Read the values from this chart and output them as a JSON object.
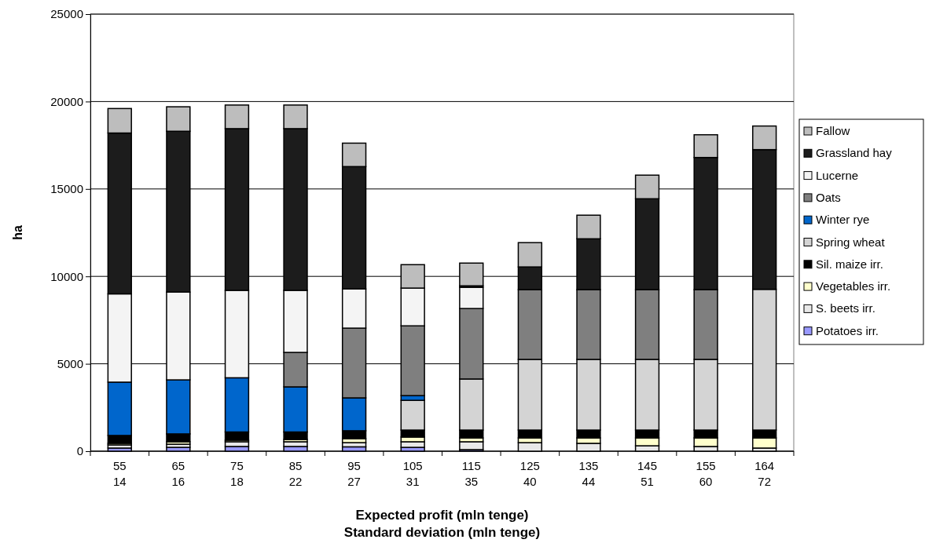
{
  "chart_data": {
    "type": "bar",
    "stacked": true,
    "categories": [
      "55\n14",
      "65\n16",
      "75\n18",
      "85\n22",
      "95\n27",
      "105\n31",
      "115\n35",
      "125\n40",
      "135\n44",
      "145\n51",
      "155\n60",
      "164\n72"
    ],
    "xlabel": "Expected profit (mln tenge)\nStandard deviation (mln tenge)",
    "ylabel": "ha",
    "ylim": [
      0,
      25000
    ],
    "yticks": [
      0,
      5000,
      10000,
      15000,
      20000,
      25000
    ],
    "grid": "y",
    "legend": "right",
    "series": [
      {
        "name": "Potatoes irr.",
        "color": "#9999ff",
        "values": [
          180,
          220,
          270,
          270,
          250,
          220,
          90,
          0,
          0,
          0,
          0,
          0
        ]
      },
      {
        "name": "S. beets irr.",
        "color": "#e8e8e8",
        "values": [
          180,
          180,
          270,
          270,
          240,
          320,
          450,
          490,
          450,
          310,
          270,
          180
        ]
      },
      {
        "name": "Vegetables irr.",
        "color": "#ffffcc",
        "values": [
          90,
          140,
          90,
          130,
          230,
          270,
          220,
          270,
          310,
          450,
          490,
          580
        ]
      },
      {
        "name": "Sil. maize irr.",
        "color": "#000000",
        "values": [
          450,
          450,
          470,
          430,
          450,
          400,
          450,
          450,
          450,
          450,
          450,
          450
        ]
      },
      {
        "name": "Spring wheat",
        "color": "#d4d4d4",
        "values": [
          0,
          0,
          0,
          0,
          0,
          1700,
          2920,
          4040,
          4040,
          4040,
          4040,
          8050
        ]
      },
      {
        "name": "Winter rye",
        "color": "#0066cc",
        "values": [
          3050,
          3090,
          3100,
          2580,
          1880,
          270,
          0,
          0,
          0,
          0,
          0,
          0
        ]
      },
      {
        "name": "Oats",
        "color": "#7f7f7f",
        "values": [
          0,
          0,
          0,
          1970,
          3990,
          3990,
          4030,
          3990,
          3990,
          3990,
          3990,
          0
        ]
      },
      {
        "name": "Lucerne",
        "color": "#f4f4f4",
        "values": [
          5050,
          5020,
          5000,
          3550,
          2240,
          2160,
          1210,
          0,
          0,
          0,
          0,
          0
        ]
      },
      {
        "name": "Grassland hay",
        "color": "#1c1c1c",
        "values": [
          9200,
          9200,
          9250,
          9250,
          7000,
          0,
          90,
          1300,
          2910,
          5200,
          7560,
          7990
        ]
      },
      {
        "name": "Fallow",
        "color": "#bdbdbd",
        "values": [
          1400,
          1400,
          1350,
          1350,
          1340,
          1340,
          1300,
          1390,
          1350,
          1350,
          1300,
          1350
        ]
      }
    ]
  }
}
